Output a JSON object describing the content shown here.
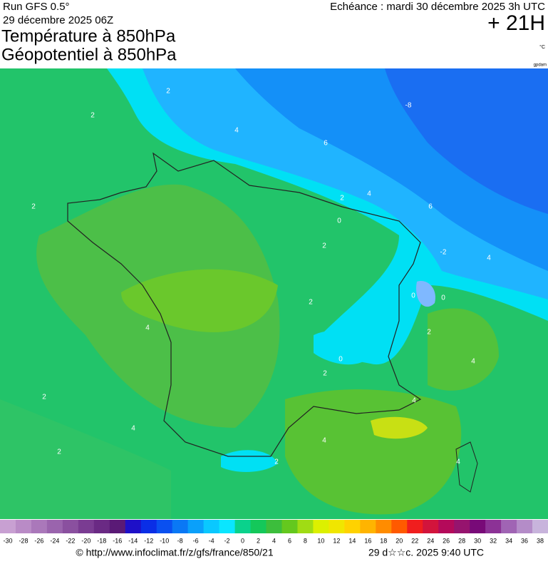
{
  "header": {
    "run": "Run GFS 0.5°",
    "run_date": "29 décembre 2025 06Z",
    "title_1": "Température à 850hPa",
    "title_2": "Géopotentiel à 850hPa",
    "valid": "Echéance : mardi 30 décembre 2025 3h UTC",
    "lead": "+ 21H",
    "unit": "°C",
    "geo_unit": "gpdam"
  },
  "map": {
    "contour_labels": [
      2,
      2,
      4,
      6,
      -8,
      2,
      2,
      4,
      6,
      0,
      2,
      -2,
      4,
      0,
      0,
      2,
      4,
      2,
      0,
      2,
      4,
      2,
      4,
      4,
      4,
      2,
      2,
      4
    ]
  },
  "scale": {
    "labels": [
      -30,
      -28,
      -26,
      -24,
      -22,
      -20,
      -18,
      -16,
      -14,
      -12,
      -10,
      -8,
      -6,
      -4,
      -2,
      0,
      2,
      4,
      6,
      8,
      10,
      12,
      14,
      16,
      18,
      20,
      22,
      24,
      26,
      28,
      30,
      32,
      34,
      36,
      38
    ],
    "colors": [
      "#c8a0d2",
      "#b98bc6",
      "#aa78ba",
      "#9a64ad",
      "#8a509f",
      "#7a3c92",
      "#6a2a84",
      "#5a1a76",
      "#1e10c8",
      "#0a2ee6",
      "#0a50f0",
      "#0a78f5",
      "#0aa0fa",
      "#0ac8ff",
      "#0ae6ff",
      "#0ad28c",
      "#14c85a",
      "#3cbe3c",
      "#64c81e",
      "#a0dc14",
      "#dcf000",
      "#f0e600",
      "#ffd200",
      "#ffb400",
      "#ff8c00",
      "#ff5a00",
      "#f01e1e",
      "#d2143c",
      "#b40a5a",
      "#96146e",
      "#780a78",
      "#8c3296",
      "#a064b4",
      "#b48cc8",
      "#c8b4dc"
    ]
  },
  "footer": {
    "url": "© http://www.infoclimat.fr/z/gfs/france/850/21",
    "stamp": "29 d☆☆c. 2025  9:40 UTC"
  }
}
